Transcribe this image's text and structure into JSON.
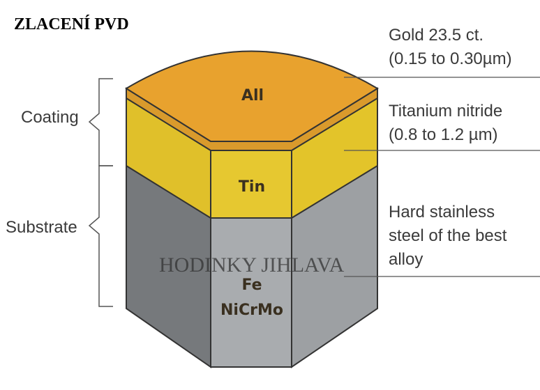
{
  "title": "ZLACENÍ PVD",
  "watermark": "HODINKY JIHLAVA",
  "layers": {
    "gold": {
      "label": "All",
      "desc_line1": "Gold 23.5 ct.",
      "desc_line2": "(0.15 to 0.30µm)",
      "color": "#e8a22e"
    },
    "tin": {
      "label": "Tin",
      "desc_line1": "Titanium nitride",
      "desc_line2": "(0.8 to 1.2 µm)",
      "color": "#e3c42a"
    },
    "substrate": {
      "label_line1": "Fe",
      "label_line2": "NiCrMo",
      "desc_line1": "Hard stainless",
      "desc_line2": "steel of the best",
      "desc_line3": "alloy",
      "color": "#a9acaf"
    }
  },
  "brackets": {
    "coating": "Coating",
    "substrate": "Substrate"
  }
}
